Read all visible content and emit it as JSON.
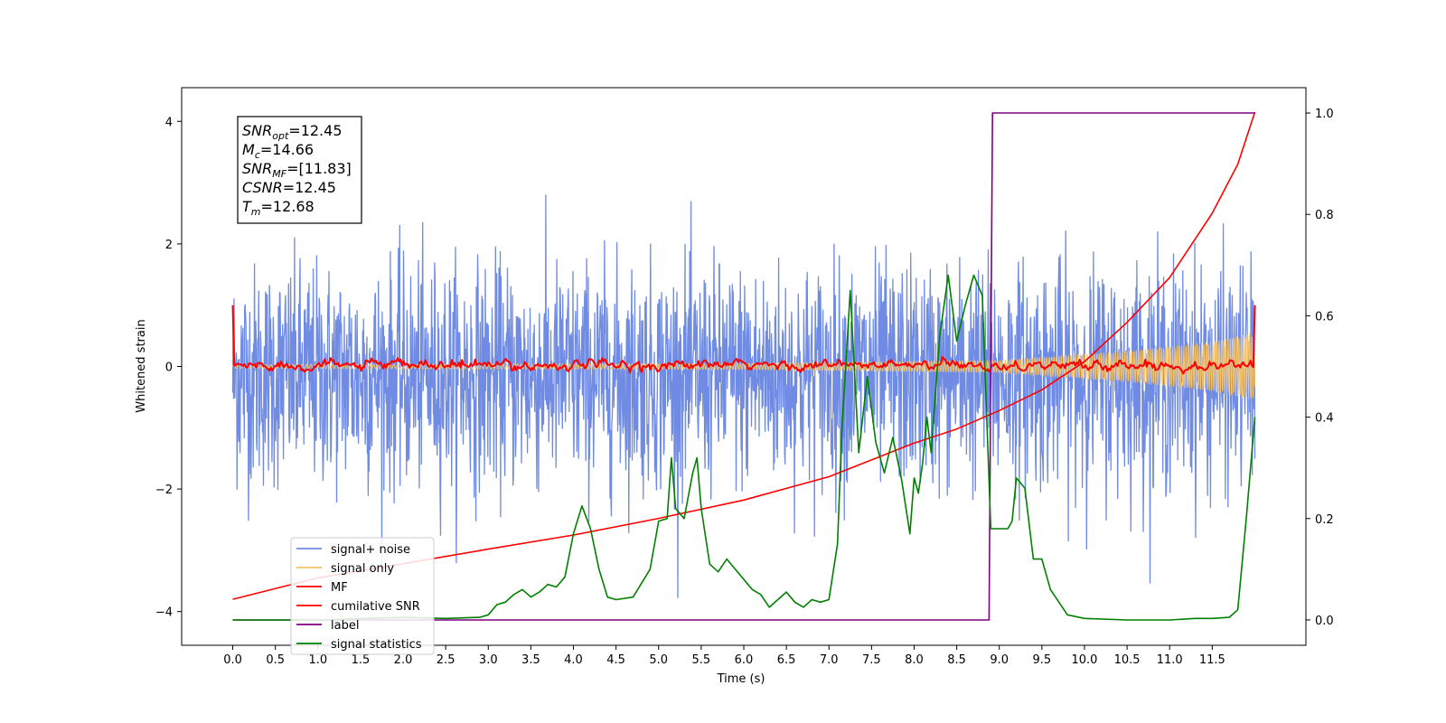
{
  "chart_data": {
    "type": "line",
    "xlabel": "Time (s)",
    "ylabel": "Whitened strain",
    "xlim": [
      -0.6,
      12.6
    ],
    "ylim": [
      -4.55,
      4.55
    ],
    "y2lim": [
      -0.05,
      1.05
    ],
    "x_ticks": [
      0.0,
      0.5,
      1.0,
      1.5,
      2.0,
      2.5,
      3.0,
      3.5,
      4.0,
      4.5,
      5.0,
      5.5,
      6.0,
      6.5,
      7.0,
      7.5,
      8.0,
      8.5,
      9.0,
      9.5,
      10.0,
      10.5,
      11.0,
      11.5
    ],
    "x_tick_labels": [
      "0.0",
      "0.5",
      "1.0",
      "1.5",
      "2.0",
      "2.5",
      "3.0",
      "3.5",
      "4.0",
      "4.5",
      "5.0",
      "5.5",
      "6.0",
      "6.5",
      "7.0",
      "7.5",
      "8.0",
      "8.5",
      "9.0",
      "9.5",
      "10.0",
      "10.5",
      "11.0",
      "11.5"
    ],
    "y_ticks": [
      -4,
      -2,
      0,
      2,
      4
    ],
    "y_tick_labels": [
      "−4",
      "−2",
      "0",
      "2",
      "4"
    ],
    "y2_ticks": [
      0.0,
      0.2,
      0.4,
      0.6,
      0.8,
      1.0
    ],
    "y2_tick_labels": [
      "0.0",
      "0.2",
      "0.4",
      "0.6",
      "0.8",
      "1.0"
    ],
    "grid": false,
    "legend_position": "lower-left",
    "annotation": {
      "lines": [
        {
          "var": "SNR",
          "sub": "opt",
          "rest": "=12.45"
        },
        {
          "var": "M",
          "sub": "c",
          "rest": "=14.66"
        },
        {
          "var": "SNR",
          "sub": "MF",
          "rest": "=[11.83]"
        },
        {
          "var": "CSNR",
          "sub": "",
          "rest": "=12.45"
        },
        {
          "var": "T",
          "sub": "m",
          "rest": "=12.68"
        }
      ]
    },
    "series": [
      {
        "name": "signal+ noise",
        "color": "#6f8be3",
        "axis": "left",
        "kind": "noise",
        "x_range": [
          0.0,
          12.0
        ],
        "amplitude_std": 0.9,
        "offset": -0.15
      },
      {
        "name": "signal only",
        "color": "#f5c36a",
        "axis": "left",
        "kind": "chirp",
        "x_range": [
          0.0,
          12.0
        ],
        "envelope": [
          [
            0.0,
            0.03
          ],
          [
            6.0,
            0.05
          ],
          [
            9.0,
            0.1
          ],
          [
            10.5,
            0.25
          ],
          [
            11.5,
            0.4
          ],
          [
            12.0,
            0.55
          ]
        ]
      },
      {
        "name": "MF",
        "color": "#ff0000",
        "axis": "left",
        "kind": "mf",
        "x_range": [
          0.0,
          12.0
        ],
        "endpoints": [
          1.0,
          1.0
        ],
        "wiggle": 0.08
      },
      {
        "name": "cumilative SNR",
        "color": "#ff0000",
        "axis": "left",
        "kind": "line",
        "x": [
          0.0,
          1.0,
          2.0,
          3.0,
          4.0,
          5.0,
          6.0,
          7.0,
          8.0,
          8.5,
          9.0,
          9.5,
          10.0,
          10.5,
          11.0,
          11.5,
          11.8,
          12.0
        ],
        "y": [
          -3.8,
          -3.45,
          -3.22,
          -2.98,
          -2.75,
          -2.48,
          -2.18,
          -1.8,
          -1.25,
          -1.02,
          -0.72,
          -0.38,
          0.08,
          0.72,
          1.45,
          2.5,
          3.3,
          4.15
        ]
      },
      {
        "name": "label",
        "color": "#800080",
        "axis": "right",
        "kind": "line",
        "x": [
          0.0,
          8.88,
          8.92,
          12.0
        ],
        "y": [
          0.0,
          0.0,
          1.0,
          1.0
        ]
      },
      {
        "name": "signal statistics",
        "color": "#008000",
        "axis": "right",
        "kind": "line",
        "x": [
          0.0,
          1.0,
          2.0,
          2.5,
          2.9,
          3.0,
          3.1,
          3.2,
          3.3,
          3.4,
          3.5,
          3.6,
          3.7,
          3.8,
          3.9,
          4.0,
          4.1,
          4.2,
          4.3,
          4.4,
          4.5,
          4.7,
          4.9,
          5.0,
          5.1,
          5.15,
          5.2,
          5.3,
          5.4,
          5.45,
          5.5,
          5.6,
          5.7,
          5.8,
          5.9,
          6.0,
          6.1,
          6.2,
          6.3,
          6.4,
          6.5,
          6.6,
          6.7,
          6.8,
          6.9,
          7.0,
          7.1,
          7.15,
          7.25,
          7.35,
          7.45,
          7.55,
          7.65,
          7.75,
          7.85,
          7.95,
          8.0,
          8.05,
          8.1,
          8.15,
          8.2,
          8.3,
          8.4,
          8.5,
          8.6,
          8.7,
          8.8,
          8.9,
          8.97,
          9.05,
          9.1,
          9.15,
          9.2,
          9.3,
          9.4,
          9.5,
          9.6,
          9.8,
          10.0,
          10.5,
          11.0,
          11.3,
          11.5,
          11.7,
          11.8,
          11.9,
          12.0
        ],
        "y": [
          0.0,
          0.0,
          0.005,
          0.003,
          0.005,
          0.01,
          0.03,
          0.035,
          0.05,
          0.06,
          0.045,
          0.055,
          0.07,
          0.065,
          0.085,
          0.17,
          0.225,
          0.18,
          0.1,
          0.045,
          0.04,
          0.045,
          0.1,
          0.195,
          0.2,
          0.32,
          0.22,
          0.2,
          0.29,
          0.32,
          0.22,
          0.11,
          0.095,
          0.12,
          0.1,
          0.08,
          0.06,
          0.05,
          0.025,
          0.04,
          0.055,
          0.035,
          0.025,
          0.04,
          0.035,
          0.04,
          0.15,
          0.37,
          0.65,
          0.33,
          0.48,
          0.35,
          0.29,
          0.36,
          0.28,
          0.17,
          0.28,
          0.25,
          0.31,
          0.4,
          0.33,
          0.56,
          0.68,
          0.55,
          0.62,
          0.68,
          0.64,
          0.18,
          0.18,
          0.18,
          0.18,
          0.195,
          0.28,
          0.26,
          0.12,
          0.12,
          0.06,
          0.01,
          0.003,
          0.0,
          0.0,
          0.003,
          0.003,
          0.005,
          0.02,
          0.2,
          0.4
        ]
      }
    ]
  }
}
